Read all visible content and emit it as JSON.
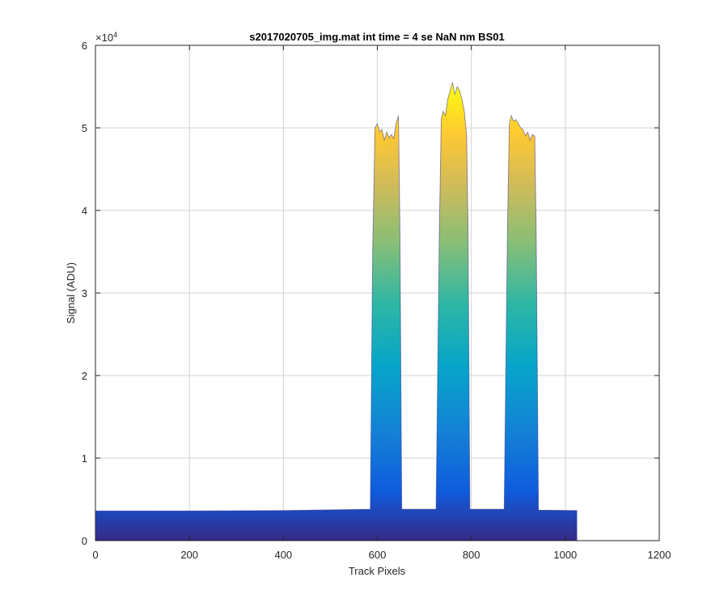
{
  "chart_data": {
    "type": "area",
    "title": "s2017020705_img.mat int time = 4 se  NaN nm BS01",
    "xlabel": "Track Pixels",
    "ylabel": "Signal (ADU)",
    "xlim": [
      0,
      1200
    ],
    "ylim": [
      0,
      60000
    ],
    "xticks": [
      0,
      200,
      400,
      600,
      800,
      1000,
      1200
    ],
    "yticks": [
      0,
      1,
      2,
      3,
      4,
      5,
      6
    ],
    "y_exponent_base": "×10",
    "y_exponent_power": "4",
    "grid": true,
    "colormap": "parula",
    "series": [
      {
        "name": "signal",
        "x": [
          0,
          200,
          400,
          585,
          590,
          595,
          600,
          605,
          610,
          615,
          620,
          625,
          630,
          635,
          640,
          645,
          648,
          652,
          725,
          732,
          736,
          740,
          745,
          750,
          755,
          760,
          765,
          770,
          775,
          780,
          785,
          790,
          793,
          797,
          870,
          877,
          881,
          885,
          890,
          895,
          900,
          905,
          910,
          915,
          920,
          925,
          930,
          935,
          938,
          943,
          1025
        ],
        "values": [
          3600,
          3600,
          3650,
          3800,
          35000,
          50000,
          50500,
          49500,
          49800,
          48500,
          49500,
          48800,
          49200,
          48700,
          50500,
          51500,
          38000,
          3800,
          3800,
          38000,
          51000,
          52000,
          51500,
          53500,
          54500,
          55500,
          54000,
          55000,
          54500,
          53500,
          52000,
          49000,
          38000,
          3800,
          3800,
          38000,
          50500,
          51500,
          50800,
          51000,
          50500,
          50000,
          49800,
          49000,
          49500,
          48500,
          49200,
          49000,
          38000,
          3700,
          3650
        ]
      }
    ]
  }
}
